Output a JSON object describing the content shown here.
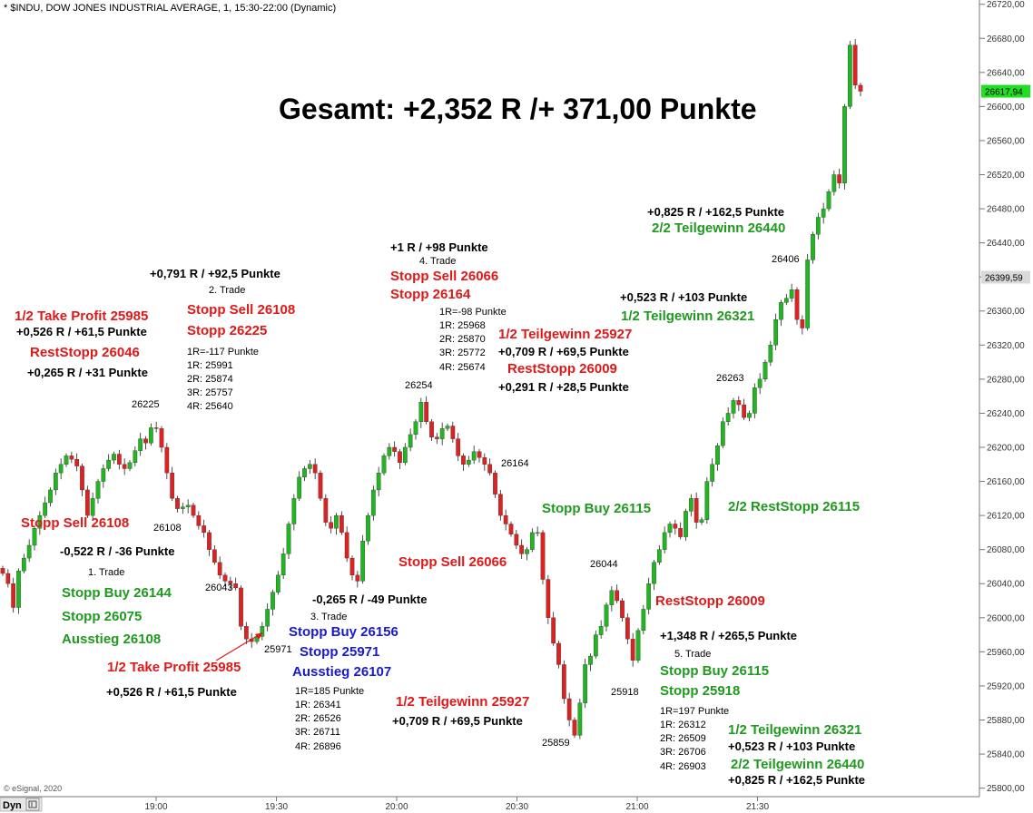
{
  "header": {
    "title": "* $INDU, DOW JONES INDUSTRIAL AVERAGE, 1, 15:30-22:00 (Dynamic)"
  },
  "footer": {
    "copyright": "© eSignal, 2020",
    "mode_label": "Dyn"
  },
  "colors": {
    "up": "#22b522",
    "down": "#dd2222",
    "red": "#e01818",
    "green": "#1e9a1e",
    "blue": "#1818d0",
    "black": "#000000",
    "price_tag": "#22dd22"
  },
  "headline": "Gesamt: +2,352 R /+ 371,00 Punkte",
  "chart_data": {
    "type": "candlestick",
    "y_axis": {
      "position": "right",
      "min": 25790,
      "max": 26725,
      "ticks": [
        "26720,00",
        "26680,00",
        "26640,00",
        "26600,00",
        "26560,00",
        "26520,00",
        "26480,00",
        "26440,00",
        "26400,00",
        "26360,00",
        "26320,00",
        "26280,00",
        "26240,00",
        "26200,00",
        "26160,00",
        "26120,00",
        "26080,00",
        "26040,00",
        "26000,00",
        "25960,00",
        "25920,00",
        "25880,00",
        "25840,00",
        "25800,00"
      ]
    },
    "x_axis": {
      "ticks": [
        "19:00",
        "19:30",
        "20:00",
        "20:30",
        "21:00",
        "21:30"
      ]
    },
    "last_price": "26617,94",
    "marker_price": "26399,59",
    "closes": [
      26052,
      26040,
      26012,
      26055,
      26070,
      26085,
      26105,
      26120,
      26135,
      26150,
      26170,
      26180,
      26190,
      26186,
      26178,
      26150,
      26120,
      26140,
      26160,
      26175,
      26185,
      26192,
      26180,
      26175,
      26182,
      26196,
      26210,
      26205,
      26223,
      26222,
      26200,
      26170,
      26140,
      26128,
      26130,
      26132,
      26120,
      26108,
      26100,
      26080,
      26065,
      26050,
      26043,
      26040,
      26035,
      25990,
      25975,
      25972,
      25978,
      25990,
      26010,
      26030,
      26050,
      26075,
      26110,
      26140,
      26165,
      26175,
      26180,
      26170,
      26140,
      26112,
      26105,
      26120,
      26100,
      26070,
      26050,
      26043,
      26090,
      26120,
      26150,
      26170,
      26190,
      26200,
      26195,
      26182,
      26200,
      26215,
      26230,
      26253,
      26230,
      26212,
      26210,
      26222,
      26225,
      26210,
      26190,
      26180,
      26185,
      26195,
      26188,
      26180,
      26170,
      26145,
      26120,
      26110,
      26098,
      26085,
      26075,
      26080,
      26100,
      26100,
      26045,
      26000,
      25970,
      25945,
      25905,
      25880,
      25862,
      25900,
      25945,
      25955,
      25980,
      25990,
      26015,
      26032,
      26020,
      26000,
      25975,
      25950,
      25985,
      26010,
      26040,
      26065,
      26080,
      26100,
      26110,
      26105,
      26095,
      26125,
      26140,
      26112,
      26115,
      26160,
      26180,
      26202,
      26230,
      26240,
      26255,
      26250,
      26235,
      26240,
      26270,
      26280,
      26300,
      26320,
      26350,
      26370,
      26375,
      26385,
      26350,
      26340,
      26420,
      26450,
      26470,
      26480,
      26500,
      26520,
      26510,
      26600,
      26672,
      26625,
      26617.94
    ]
  },
  "annotations": [
    {
      "text": "1/2 Take Profit 25985",
      "color": "red",
      "bold": true,
      "size": 15
    },
    {
      "text": "+0,526 R / +61,5 Punkte",
      "color": "black",
      "bold": true,
      "size": 13
    },
    {
      "text": "RestStopp 26046",
      "color": "red",
      "bold": true,
      "size": 15
    },
    {
      "text": "+0,265 R / +31 Punkte",
      "color": "black",
      "bold": true,
      "size": 13
    },
    {
      "text": "26225",
      "color": "black",
      "bold": false,
      "size": 11
    },
    {
      "text": "+0,791 R / +92,5 Punkte",
      "color": "black",
      "bold": true,
      "size": 13
    },
    {
      "text": "2. Trade",
      "color": "black",
      "bold": false,
      "size": 11
    },
    {
      "text": "Stopp Sell 26108",
      "color": "red",
      "bold": true,
      "size": 15
    },
    {
      "text": "Stopp 26225",
      "color": "red",
      "bold": true,
      "size": 15
    },
    {
      "text": "1R=-117 Punkte",
      "color": "black",
      "bold": false,
      "size": 11
    },
    {
      "text": "1R: 25991",
      "color": "black",
      "bold": false,
      "size": 11
    },
    {
      "text": "2R: 25874",
      "color": "black",
      "bold": false,
      "size": 11
    },
    {
      "text": "3R: 25757",
      "color": "black",
      "bold": false,
      "size": 11
    },
    {
      "text": "4R: 25640",
      "color": "black",
      "bold": false,
      "size": 11
    },
    {
      "text": "+1 R / +98 Punkte",
      "color": "black",
      "bold": true,
      "size": 13
    },
    {
      "text": "4. Trade",
      "color": "black",
      "bold": false,
      "size": 11
    },
    {
      "text": "Stopp Sell 26066",
      "color": "red",
      "bold": true,
      "size": 15
    },
    {
      "text": "Stopp 26164",
      "color": "red",
      "bold": true,
      "size": 15
    },
    {
      "text": "1R=-98 Punkte",
      "color": "black",
      "bold": false,
      "size": 11
    },
    {
      "text": "1R: 25968",
      "color": "black",
      "bold": false,
      "size": 11
    },
    {
      "text": "2R: 25870",
      "color": "black",
      "bold": false,
      "size": 11
    },
    {
      "text": "3R: 25772",
      "color": "black",
      "bold": false,
      "size": 11
    },
    {
      "text": "4R: 25674",
      "color": "black",
      "bold": false,
      "size": 11
    },
    {
      "text": "26254",
      "color": "black",
      "bold": false,
      "size": 11
    },
    {
      "text": "1/2 Teilgewinn 25927",
      "color": "red",
      "bold": true,
      "size": 15
    },
    {
      "text": "+0,709 R / +69,5 Punkte",
      "color": "black",
      "bold": true,
      "size": 13
    },
    {
      "text": "RestStopp 26009",
      "color": "red",
      "bold": true,
      "size": 15
    },
    {
      "text": "+0,291 R / +28,5 Punkte",
      "color": "black",
      "bold": true,
      "size": 13
    },
    {
      "text": "+0,825 R / +162,5 Punkte",
      "color": "black",
      "bold": true,
      "size": 13
    },
    {
      "text": "2/2 Teilgewinn 26440",
      "color": "green",
      "bold": true,
      "size": 15
    },
    {
      "text": "26406",
      "color": "black",
      "bold": false,
      "size": 11
    },
    {
      "text": "+0,523 R / +103 Punkte",
      "color": "black",
      "bold": true,
      "size": 13
    },
    {
      "text": "1/2 Teilgewinn 26321",
      "color": "green",
      "bold": true,
      "size": 15
    },
    {
      "text": "26263",
      "color": "black",
      "bold": false,
      "size": 11
    },
    {
      "text": "Stopp Sell 26108",
      "color": "red",
      "bold": true,
      "size": 15
    },
    {
      "text": "26108",
      "color": "black",
      "bold": false,
      "size": 11
    },
    {
      "text": "-0,522 R / -36 Punkte",
      "color": "black",
      "bold": true,
      "size": 13
    },
    {
      "text": "1. Trade",
      "color": "black",
      "bold": false,
      "size": 11
    },
    {
      "text": "Stopp Buy 26144",
      "color": "green",
      "bold": true,
      "size": 15
    },
    {
      "text": "Stopp 26075",
      "color": "green",
      "bold": true,
      "size": 15
    },
    {
      "text": "Ausstieg 26108",
      "color": "green",
      "bold": true,
      "size": 15
    },
    {
      "text": "26043",
      "color": "black",
      "bold": false,
      "size": 11
    },
    {
      "text": "1/2 Take Profit 25985",
      "color": "red",
      "bold": true,
      "size": 15
    },
    {
      "text": "+0,526 R / +61,5 Punkte",
      "color": "black",
      "bold": true,
      "size": 13
    },
    {
      "text": "25971",
      "color": "black",
      "bold": false,
      "size": 11
    },
    {
      "text": "-0,265 R / -49 Punkte",
      "color": "black",
      "bold": true,
      "size": 13
    },
    {
      "text": "3. Trade",
      "color": "black",
      "bold": false,
      "size": 11
    },
    {
      "text": "Stopp Buy 26156",
      "color": "blue",
      "bold": true,
      "size": 15
    },
    {
      "text": "Stopp 25971",
      "color": "blue",
      "bold": true,
      "size": 15
    },
    {
      "text": "Ausstieg 26107",
      "color": "blue",
      "bold": true,
      "size": 15
    },
    {
      "text": "1R=185 Punkte",
      "color": "black",
      "bold": false,
      "size": 11
    },
    {
      "text": "1R: 26341",
      "color": "black",
      "bold": false,
      "size": 11
    },
    {
      "text": "2R: 26526",
      "color": "black",
      "bold": false,
      "size": 11
    },
    {
      "text": "3R: 26711",
      "color": "black",
      "bold": false,
      "size": 11
    },
    {
      "text": "4R: 26896",
      "color": "black",
      "bold": false,
      "size": 11
    },
    {
      "text": "Stopp Sell 26066",
      "color": "red",
      "bold": true,
      "size": 15
    },
    {
      "text": "26164",
      "color": "black",
      "bold": false,
      "size": 11
    },
    {
      "text": "1/2 Teilgewinn 25927",
      "color": "red",
      "bold": true,
      "size": 15
    },
    {
      "text": "+0,709 R / +69,5 Punkte",
      "color": "black",
      "bold": true,
      "size": 13
    },
    {
      "text": "25859",
      "color": "black",
      "bold": false,
      "size": 11
    },
    {
      "text": "Stopp Buy 26115",
      "color": "green",
      "bold": true,
      "size": 15
    },
    {
      "text": "26044",
      "color": "black",
      "bold": false,
      "size": 11
    },
    {
      "text": "RestStopp 26009",
      "color": "red",
      "bold": true,
      "size": 15
    },
    {
      "text": "25918",
      "color": "black",
      "bold": false,
      "size": 11
    },
    {
      "text": "+1,348 R / +265,5 Punkte",
      "color": "black",
      "bold": true,
      "size": 13
    },
    {
      "text": "5. Trade",
      "color": "black",
      "bold": false,
      "size": 11
    },
    {
      "text": "Stopp Buy 26115",
      "color": "green",
      "bold": true,
      "size": 15
    },
    {
      "text": "Stopp 25918",
      "color": "green",
      "bold": true,
      "size": 15
    },
    {
      "text": "1R=197 Punkte",
      "color": "black",
      "bold": false,
      "size": 11
    },
    {
      "text": "1R: 26312",
      "color": "black",
      "bold": false,
      "size": 11
    },
    {
      "text": "2R: 26509",
      "color": "black",
      "bold": false,
      "size": 11
    },
    {
      "text": "3R: 26706",
      "color": "black",
      "bold": false,
      "size": 11
    },
    {
      "text": "4R: 26903",
      "color": "black",
      "bold": false,
      "size": 11
    },
    {
      "text": "2/2  RestStopp 26115",
      "color": "green",
      "bold": true,
      "size": 15
    },
    {
      "text": "1/2 Teilgewinn 26321",
      "color": "green",
      "bold": true,
      "size": 15
    },
    {
      "text": "+0,523 R / +103 Punkte",
      "color": "black",
      "bold": true,
      "size": 13
    },
    {
      "text": "2/2 Teilgewinn 26440",
      "color": "green",
      "bold": true,
      "size": 15
    },
    {
      "text": "+0,825 R / +162,5 Punkte",
      "color": "black",
      "bold": true,
      "size": 13
    }
  ]
}
